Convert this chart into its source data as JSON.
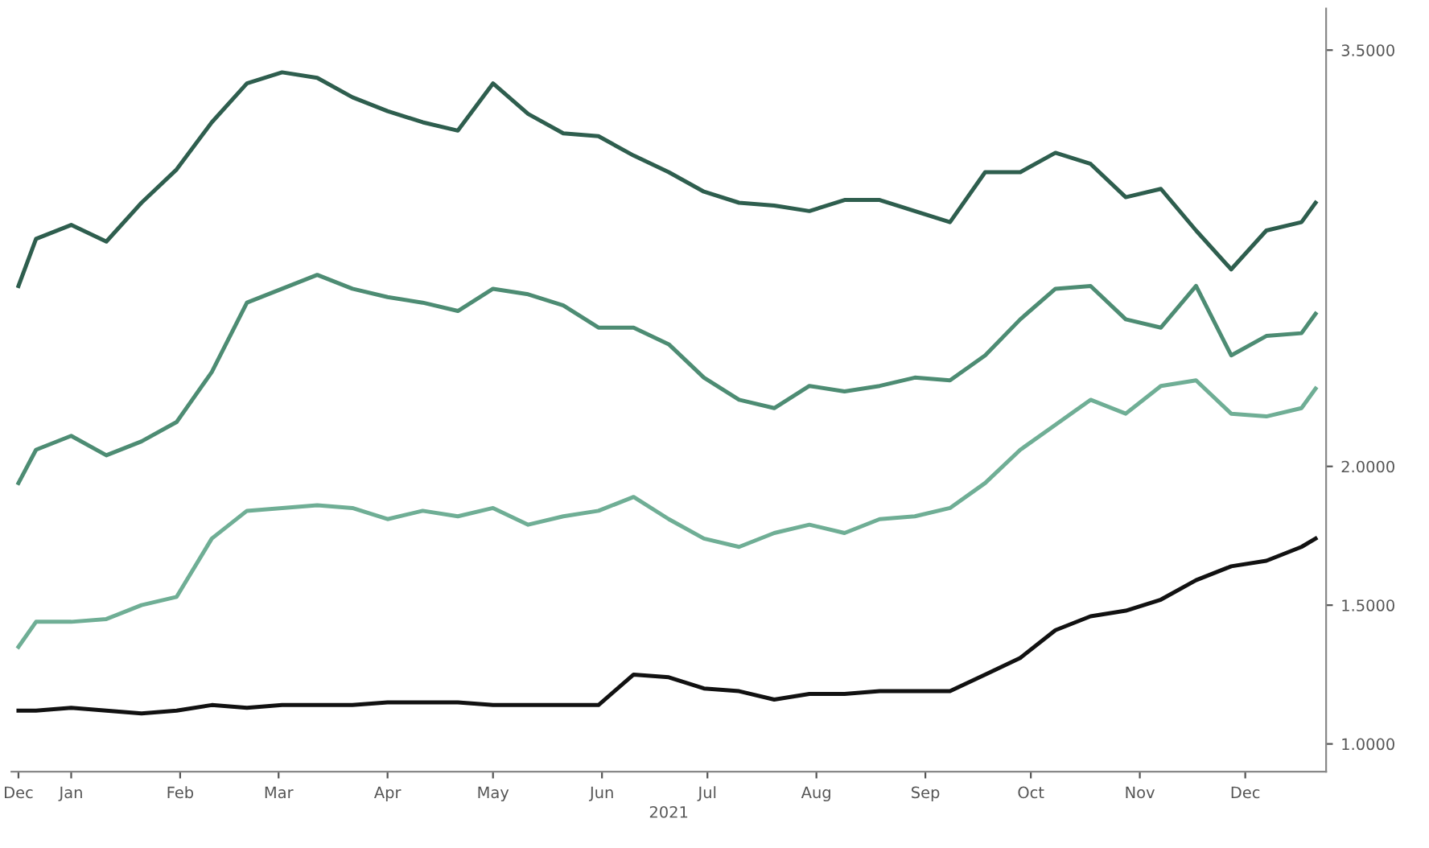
{
  "chart_data": {
    "type": "line",
    "xlabel": "2021",
    "x": [
      "2020-12-17",
      "2020-12-22",
      "2021-01-01",
      "2021-01-11",
      "2021-01-21",
      "2021-01-31",
      "2021-02-10",
      "2021-02-20",
      "2021-03-02",
      "2021-03-12",
      "2021-03-22",
      "2021-04-01",
      "2021-04-11",
      "2021-04-21",
      "2021-05-01",
      "2021-05-11",
      "2021-05-21",
      "2021-05-31",
      "2021-06-10",
      "2021-06-20",
      "2021-06-30",
      "2021-07-10",
      "2021-07-20",
      "2021-07-30",
      "2021-08-09",
      "2021-08-19",
      "2021-08-29",
      "2021-09-08",
      "2021-09-18",
      "2021-09-28",
      "2021-10-08",
      "2021-10-18",
      "2021-10-28",
      "2021-11-07",
      "2021-11-17",
      "2021-11-27",
      "2021-12-07",
      "2021-12-17",
      "2021-12-21"
    ],
    "series": [
      {
        "color": "#2e5e4e",
        "values": [
          2.65,
          2.82,
          2.87,
          2.81,
          2.95,
          3.07,
          3.24,
          3.38,
          3.42,
          3.4,
          3.33,
          3.28,
          3.24,
          3.21,
          3.38,
          3.27,
          3.2,
          3.19,
          3.12,
          3.06,
          2.99,
          2.95,
          2.94,
          2.92,
          2.96,
          2.96,
          2.92,
          2.88,
          3.06,
          3.06,
          3.13,
          3.09,
          2.97,
          3.0,
          2.85,
          2.71,
          2.85,
          2.88,
          2.95
        ]
      },
      {
        "color": "#4d8c73",
        "values": [
          1.94,
          2.06,
          2.11,
          2.04,
          2.09,
          2.16,
          2.34,
          2.59,
          2.64,
          2.69,
          2.64,
          2.61,
          2.59,
          2.56,
          2.64,
          2.62,
          2.58,
          2.5,
          2.5,
          2.44,
          2.32,
          2.24,
          2.21,
          2.29,
          2.27,
          2.29,
          2.32,
          2.31,
          2.4,
          2.53,
          2.64,
          2.65,
          2.53,
          2.5,
          2.65,
          2.4,
          2.47,
          2.48,
          2.55
        ]
      },
      {
        "color": "#6fae95",
        "values": [
          1.35,
          1.44,
          1.44,
          1.45,
          1.5,
          1.53,
          1.74,
          1.84,
          1.85,
          1.86,
          1.85,
          1.81,
          1.84,
          1.82,
          1.85,
          1.79,
          1.82,
          1.84,
          1.89,
          1.81,
          1.74,
          1.71,
          1.76,
          1.79,
          1.76,
          1.81,
          1.82,
          1.85,
          1.94,
          2.06,
          2.15,
          2.24,
          2.19,
          2.29,
          2.31,
          2.19,
          2.18,
          2.21,
          2.28
        ]
      },
      {
        "color": "#111111",
        "values": [
          1.12,
          1.12,
          1.13,
          1.12,
          1.11,
          1.12,
          1.14,
          1.13,
          1.14,
          1.14,
          1.14,
          1.15,
          1.15,
          1.15,
          1.14,
          1.14,
          1.14,
          1.14,
          1.25,
          1.24,
          1.2,
          1.19,
          1.16,
          1.18,
          1.18,
          1.19,
          1.19,
          1.19,
          1.25,
          1.31,
          1.41,
          1.46,
          1.48,
          1.52,
          1.59,
          1.64,
          1.66,
          1.71,
          1.74
        ]
      }
    ],
    "xlim": [
      "2020-12-15",
      "2021-12-24"
    ],
    "xticks": [
      {
        "value": "2020-12-17",
        "label": "Dec"
      },
      {
        "value": "2021-01-01",
        "label": "Jan"
      },
      {
        "value": "2021-02-01",
        "label": "Feb"
      },
      {
        "value": "2021-03-01",
        "label": "Mar"
      },
      {
        "value": "2021-04-01",
        "label": "Apr"
      },
      {
        "value": "2021-05-01",
        "label": "May"
      },
      {
        "value": "2021-06-01",
        "label": "Jun"
      },
      {
        "value": "2021-07-01",
        "label": "Jul"
      },
      {
        "value": "2021-08-01",
        "label": "Aug"
      },
      {
        "value": "2021-09-01",
        "label": "Sep"
      },
      {
        "value": "2021-10-01",
        "label": "Oct"
      },
      {
        "value": "2021-11-01",
        "label": "Nov"
      },
      {
        "value": "2021-12-01",
        "label": "Dec"
      }
    ],
    "ylim": [
      0.9,
      3.65
    ],
    "yticks": [
      {
        "value": 1.0,
        "label": "1.0000"
      },
      {
        "value": 1.5,
        "label": "1.5000"
      },
      {
        "value": 2.0,
        "label": "2.0000"
      },
      {
        "value": 3.5,
        "label": "3.5000"
      }
    ],
    "grid": false,
    "legend": false,
    "marker": "none",
    "line_style": "solid"
  }
}
